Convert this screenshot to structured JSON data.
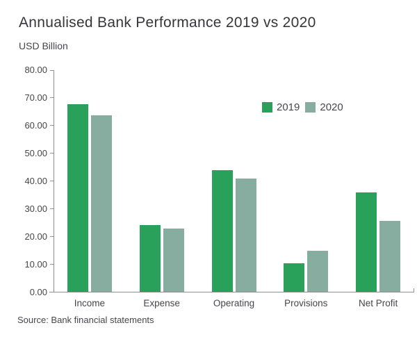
{
  "header": {
    "title": "Annualised Bank Performance 2019 vs 2020",
    "subtitle": "USD Billion"
  },
  "footer": {
    "source": "Source: Bank financial statements"
  },
  "colors": {
    "series_2019": "#2aa15b",
    "series_2020": "#86ad9f",
    "axis": "#8f8f8f",
    "text": "#45454d",
    "title_text": "#35353d",
    "background": "#ffffff"
  },
  "chart_data": {
    "type": "bar",
    "title": "Annualised Bank Performance 2019 vs 2020",
    "subtitle": "USD Billion",
    "ylabel": "USD Billion",
    "xlabel": "",
    "categories": [
      "Income",
      "Expense",
      "Operating",
      "Provisions",
      "Net Profit"
    ],
    "series": [
      {
        "name": "2019",
        "color": "#2aa15b",
        "values": [
          67.6,
          24.0,
          44.0,
          10.4,
          35.8
        ]
      },
      {
        "name": "2020",
        "color": "#86ad9f",
        "values": [
          63.8,
          22.9,
          41.0,
          14.9,
          25.7
        ]
      }
    ],
    "ylim": [
      0,
      80
    ],
    "ytick_step": 10,
    "ytick_format": "two_decimals",
    "grid": false,
    "legend_position": "top-right-inside",
    "source": "Source: Bank financial statements"
  }
}
